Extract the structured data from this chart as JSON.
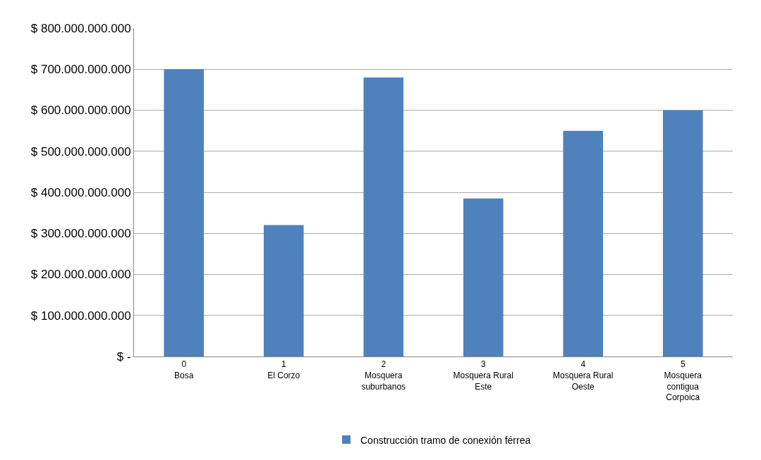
{
  "chart_data": {
    "type": "bar",
    "categories": [
      "0\nBosa",
      "1\nEl Corzo",
      "2\nMosquera\nsuburbanos",
      "3\nMosquera Rural\nEste",
      "4\nMosquera Rural\nOeste",
      "5\nMosquera\ncontigua\nCorpoica"
    ],
    "series": [
      {
        "name": "Construcción tramo de conexión férrea",
        "color": "#4f81bd",
        "values": [
          700000000000,
          320000000000,
          680000000000,
          385000000000,
          550000000000,
          600000000000
        ]
      }
    ],
    "ylim": [
      0,
      800000000000
    ],
    "yticks": [
      {
        "value": 0,
        "label": "$ -"
      },
      {
        "value": 100000000000,
        "label": "$ 100.000.000.000"
      },
      {
        "value": 200000000000,
        "label": "$ 200.000.000.000"
      },
      {
        "value": 300000000000,
        "label": "$ 300.000.000.000"
      },
      {
        "value": 400000000000,
        "label": "$ 400.000.000.000"
      },
      {
        "value": 500000000000,
        "label": "$ 500.000.000.000"
      },
      {
        "value": 600000000000,
        "label": "$ 600.000.000.000"
      },
      {
        "value": 700000000000,
        "label": "$ 700.000.000.000"
      },
      {
        "value": 800000000000,
        "label": "$ 800.000.000.000"
      }
    ],
    "grid": "y",
    "legend": "bottom"
  }
}
